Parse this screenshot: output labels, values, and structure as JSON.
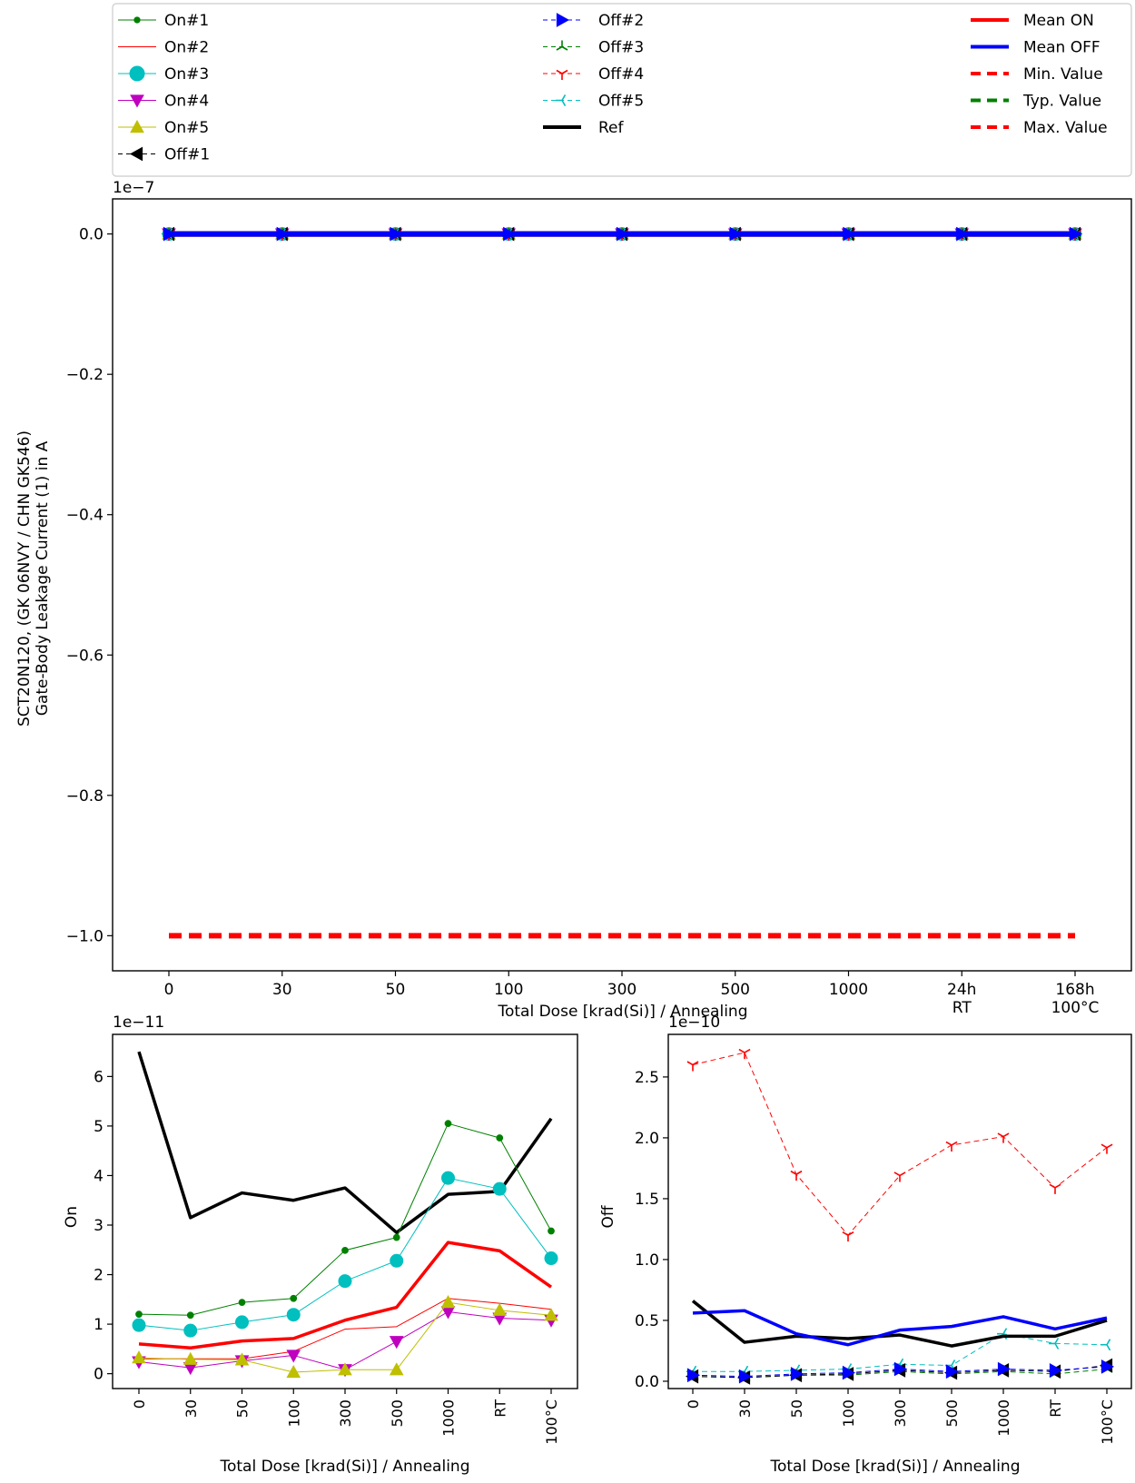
{
  "legend": {
    "col1": [
      "On#1",
      "On#2",
      "On#3",
      "On#4",
      "On#5",
      "Off#1"
    ],
    "col2": [
      "Off#2",
      "Off#3",
      "Off#4",
      "Off#5",
      "Ref"
    ],
    "col3": [
      "Mean ON",
      "Mean OFF",
      "Min. Value",
      "Typ. Value",
      "Max. Value"
    ]
  },
  "styles": {
    "On#1": {
      "color": "#008000",
      "marker": "dot",
      "dash": "",
      "width": 1
    },
    "On#2": {
      "color": "#ff0000",
      "marker": "none",
      "dash": "",
      "width": 1
    },
    "On#3": {
      "color": "#00bfbf",
      "marker": "circle",
      "dash": "",
      "width": 1
    },
    "On#4": {
      "color": "#bf00bf",
      "marker": "tri-down",
      "dash": "",
      "width": 1
    },
    "On#5": {
      "color": "#bfbf00",
      "marker": "tri-up",
      "dash": "",
      "width": 1
    },
    "Off#1": {
      "color": "#000000",
      "marker": "tri-left",
      "dash": "6,4",
      "width": 1
    },
    "Off#2": {
      "color": "#0000ff",
      "marker": "tri-right",
      "dash": "6,4",
      "width": 1
    },
    "Off#3": {
      "color": "#008000",
      "marker": "tri-y",
      "dash": "6,4",
      "width": 1
    },
    "Off#4": {
      "color": "#ff0000",
      "marker": "tri-y-down",
      "dash": "6,4",
      "width": 1
    },
    "Off#5": {
      "color": "#00bfbf",
      "marker": "tri-left3",
      "dash": "6,4",
      "width": 1
    },
    "Ref": {
      "color": "#000000",
      "marker": "none",
      "dash": "",
      "width": 4
    },
    "Mean ON": {
      "color": "#ff0000",
      "marker": "none",
      "dash": "",
      "width": 4
    },
    "Mean OFF": {
      "color": "#0000ff",
      "marker": "none",
      "dash": "",
      "width": 4
    },
    "Min. Value": {
      "color": "#ff0000",
      "marker": "none",
      "dash": "14,8",
      "width": 4
    },
    "Typ. Value": {
      "color": "#008000",
      "marker": "none",
      "dash": "14,8",
      "width": 4
    },
    "Max. Value": {
      "color": "#ff0000",
      "marker": "none",
      "dash": "14,8",
      "width": 4
    }
  },
  "chart_data": [
    {
      "type": "line",
      "id": "main",
      "exponent_label": "1e−7",
      "ylabel": [
        "SCT20N120, (GK 06NVY / CHN GK546)",
        "Gate-Body Leakage Current (1) in A"
      ],
      "xlabel": "Total Dose [krad(Si)] / Annealing",
      "categories": [
        "0",
        "30",
        "50",
        "100",
        "300",
        "500",
        "1000",
        "24h\nRT",
        "168h\n100°C"
      ],
      "ylim": [
        -1.05,
        0.05
      ],
      "yticks": [
        0.0,
        -0.2,
        -0.4,
        -0.6,
        -0.8,
        -1.0
      ],
      "ytick_labels": [
        "0.0",
        "−0.2",
        "−0.4",
        "−0.6",
        "−0.8",
        "−1.0"
      ],
      "series": [
        {
          "name": "Min. Value",
          "values": [
            -1.0,
            -1.0,
            -1.0,
            -1.0,
            -1.0,
            -1.0,
            -1.0,
            -1.0,
            -1.0
          ]
        },
        {
          "name": "On#1",
          "values": [
            0,
            0,
            0,
            0,
            0,
            0,
            0,
            0,
            0
          ]
        },
        {
          "name": "On#2",
          "values": [
            0,
            0,
            0,
            0,
            0,
            0,
            0,
            0,
            0
          ]
        },
        {
          "name": "On#3",
          "values": [
            0,
            0,
            0,
            0,
            0,
            0,
            0,
            0,
            0
          ]
        },
        {
          "name": "On#4",
          "values": [
            0,
            0,
            0,
            0,
            0,
            0,
            0,
            0,
            0
          ]
        },
        {
          "name": "On#5",
          "values": [
            0,
            0,
            0,
            0,
            0,
            0,
            0,
            0,
            0
          ]
        },
        {
          "name": "Off#1",
          "values": [
            0,
            0,
            0,
            0,
            0,
            0,
            0,
            0,
            0
          ]
        },
        {
          "name": "Off#3",
          "values": [
            0,
            0,
            0,
            0,
            0,
            0,
            0,
            0,
            0
          ]
        },
        {
          "name": "Off#4",
          "values": [
            0,
            0,
            0,
            0,
            0,
            0,
            0,
            0,
            0
          ]
        },
        {
          "name": "Off#5",
          "values": [
            0,
            0,
            0,
            0,
            0,
            0,
            0,
            0,
            0
          ]
        },
        {
          "name": "Ref",
          "values": [
            0,
            0,
            0,
            0,
            0,
            0,
            0,
            0,
            0
          ]
        },
        {
          "name": "Mean ON",
          "values": [
            0,
            0,
            0,
            0,
            0,
            0,
            0,
            0,
            0
          ]
        },
        {
          "name": "Mean OFF",
          "values": [
            0,
            0,
            0,
            0,
            0,
            0,
            0,
            0,
            0
          ]
        },
        {
          "name": "Off#2",
          "values": [
            0,
            0,
            0,
            0,
            0,
            0,
            0,
            0,
            0
          ]
        }
      ]
    },
    {
      "type": "line",
      "id": "on",
      "exponent_label": "1e−11",
      "ylabel": "On",
      "xlabel": "Total Dose [krad(Si)] / Annealing",
      "categories": [
        "0",
        "30",
        "50",
        "100",
        "300",
        "500",
        "1000",
        "RT",
        "100°C"
      ],
      "ylim": [
        -0.3,
        6.85
      ],
      "yticks": [
        0,
        1,
        2,
        3,
        4,
        5,
        6
      ],
      "ytick_labels": [
        "0",
        "1",
        "2",
        "3",
        "4",
        "5",
        "6"
      ],
      "series": [
        {
          "name": "Ref",
          "values": [
            6.5,
            3.15,
            3.65,
            3.5,
            3.75,
            2.85,
            3.62,
            3.68,
            5.15
          ]
        },
        {
          "name": "On#1",
          "values": [
            1.2,
            1.18,
            1.44,
            1.52,
            2.49,
            2.75,
            5.05,
            4.76,
            2.88
          ]
        },
        {
          "name": "On#2",
          "values": [
            0.3,
            0.3,
            0.3,
            0.45,
            0.9,
            0.95,
            1.52,
            1.42,
            1.3
          ]
        },
        {
          "name": "On#3",
          "values": [
            0.98,
            0.87,
            1.04,
            1.19,
            1.87,
            2.28,
            3.95,
            3.73,
            2.33
          ]
        },
        {
          "name": "On#4",
          "values": [
            0.24,
            0.12,
            0.26,
            0.37,
            0.08,
            0.65,
            1.25,
            1.12,
            1.08
          ]
        },
        {
          "name": "On#5",
          "values": [
            0.32,
            0.29,
            0.28,
            0.03,
            0.08,
            0.08,
            1.44,
            1.28,
            1.18
          ]
        },
        {
          "name": "Mean ON",
          "values": [
            0.6,
            0.52,
            0.66,
            0.71,
            1.08,
            1.34,
            2.65,
            2.48,
            1.75
          ]
        }
      ]
    },
    {
      "type": "line",
      "id": "off",
      "exponent_label": "1e−10",
      "ylabel": "Off",
      "xlabel": "Total Dose [krad(Si)] / Annealing",
      "categories": [
        "0",
        "30",
        "50",
        "100",
        "300",
        "500",
        "1000",
        "RT",
        "100°C"
      ],
      "ylim": [
        -0.06,
        2.85
      ],
      "yticks": [
        0.0,
        0.5,
        1.0,
        1.5,
        2.0,
        2.5
      ],
      "ytick_labels": [
        "0.0",
        "0.5",
        "1.0",
        "1.5",
        "2.0",
        "2.5"
      ],
      "series": [
        {
          "name": "Off#4",
          "values": [
            2.6,
            2.7,
            1.7,
            1.2,
            1.69,
            1.94,
            2.01,
            1.59,
            1.92
          ]
        },
        {
          "name": "Off#5",
          "values": [
            0.08,
            0.08,
            0.09,
            0.1,
            0.14,
            0.13,
            0.39,
            0.31,
            0.3
          ]
        },
        {
          "name": "Off#3",
          "values": [
            0.04,
            0.03,
            0.05,
            0.05,
            0.08,
            0.06,
            0.08,
            0.06,
            0.1
          ]
        },
        {
          "name": "Off#1",
          "values": [
            0.04,
            0.03,
            0.05,
            0.06,
            0.09,
            0.07,
            0.09,
            0.08,
            0.13
          ]
        },
        {
          "name": "Off#2",
          "values": [
            0.05,
            0.04,
            0.06,
            0.07,
            0.1,
            0.08,
            0.1,
            0.09,
            0.12
          ]
        },
        {
          "name": "Ref",
          "values": [
            0.66,
            0.32,
            0.37,
            0.35,
            0.38,
            0.29,
            0.37,
            0.37,
            0.5
          ]
        },
        {
          "name": "Mean OFF",
          "values": [
            0.56,
            0.58,
            0.39,
            0.3,
            0.42,
            0.45,
            0.53,
            0.43,
            0.52
          ]
        }
      ]
    }
  ]
}
